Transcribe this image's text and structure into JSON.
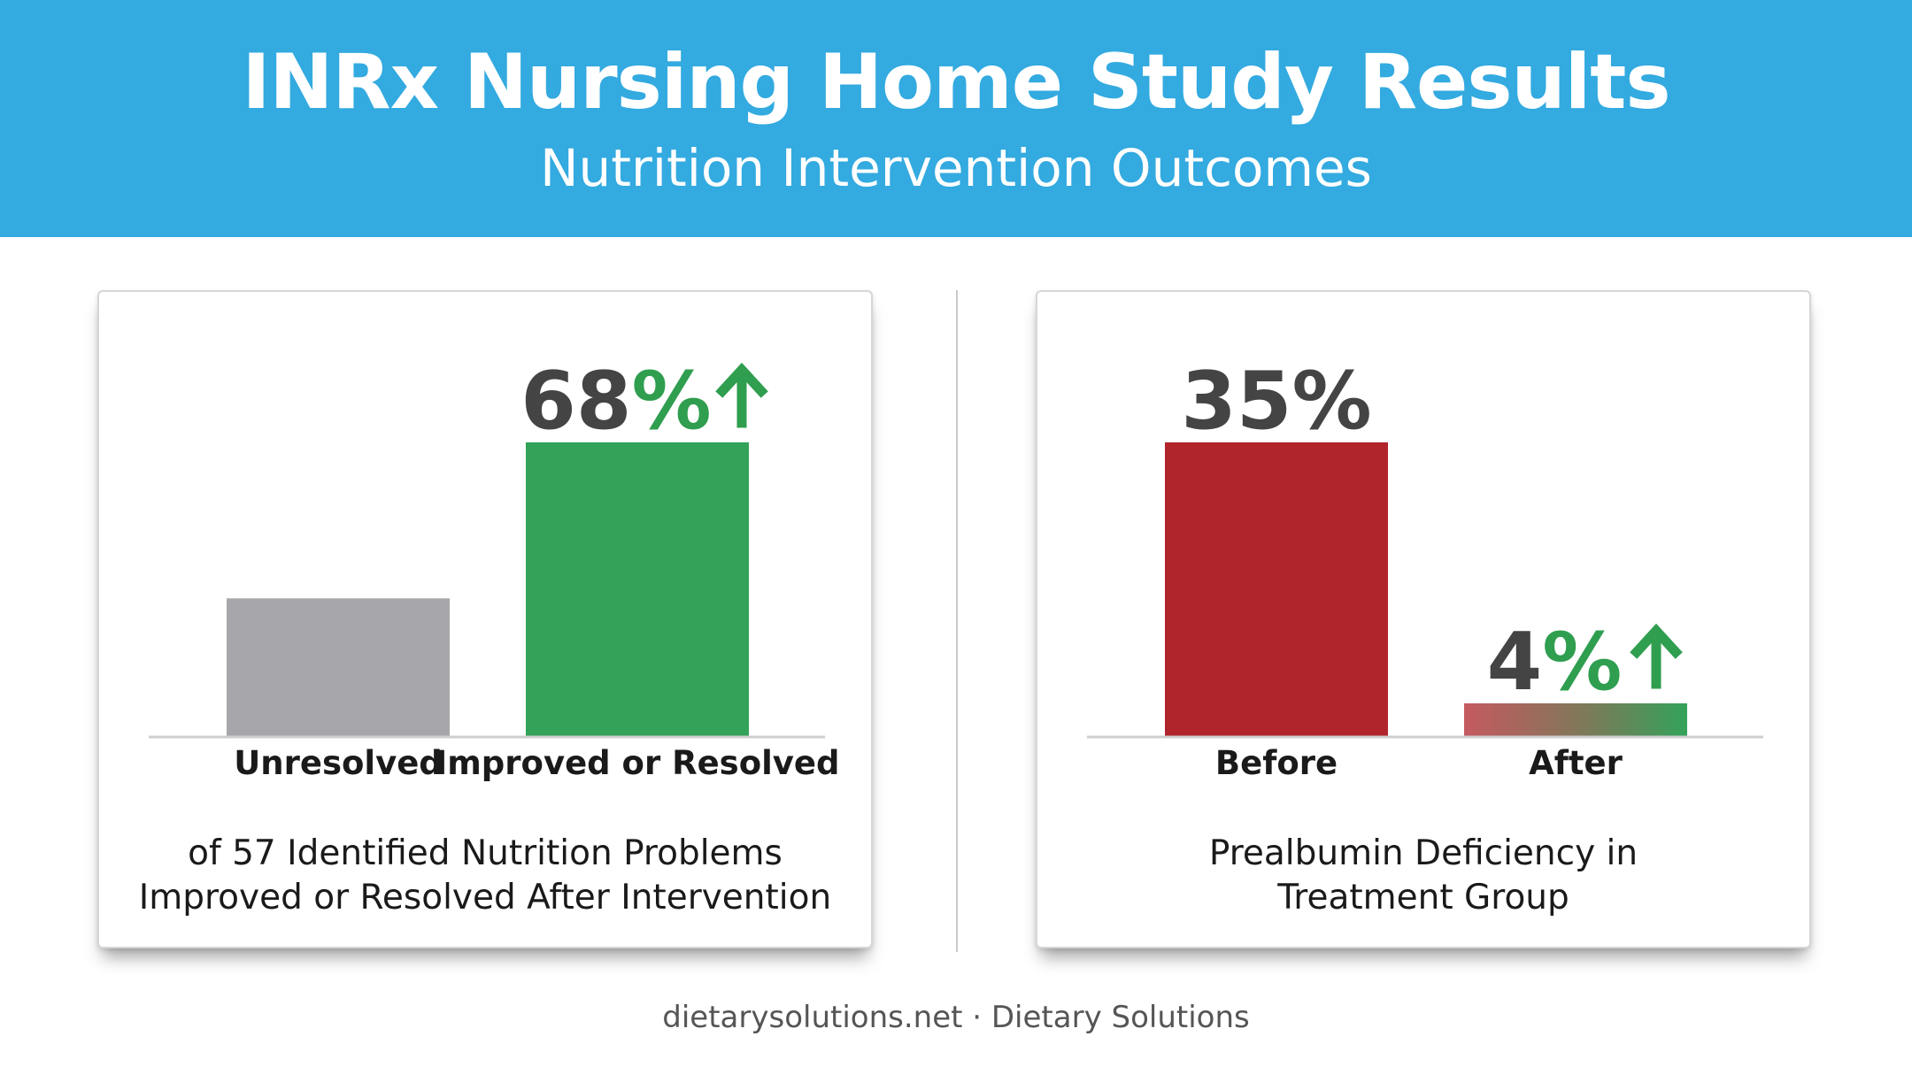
{
  "header": {
    "title": "INRx Nursing Home Study Results",
    "subtitle": "Nutrition Intervention Outcomes"
  },
  "colors": {
    "header_bg": "#33aae0",
    "gray": "#a7a7ab",
    "green": "#33a35a",
    "red": "#b0242c",
    "dark_text": "#444444",
    "accent_green": "#2f9e4f"
  },
  "chart_data": [
    {
      "type": "bar",
      "categories": [
        "Unresolved",
        "Improved or Resolved"
      ],
      "values": [
        32,
        68
      ],
      "ylim": [
        0,
        68
      ],
      "data_labels": [
        "",
        "68%"
      ],
      "label_arrow": [
        false,
        true
      ],
      "bar_colors": [
        "#a7a7ab",
        "#33a35a"
      ],
      "caption_lines": [
        "of 57 Identified Nutrition Problems",
        "Improved or Resolved After Intervention"
      ]
    },
    {
      "type": "bar",
      "categories": [
        "Before",
        "After"
      ],
      "values": [
        35,
        4
      ],
      "ylim": [
        0,
        35
      ],
      "data_labels": [
        "35%",
        "4%"
      ],
      "label_arrow": [
        false,
        true
      ],
      "bar_colors": [
        "#b0242c",
        "gradient-red-green"
      ],
      "caption_lines": [
        "Prealbumin Deficiency in",
        "Treatment Group"
      ]
    }
  ],
  "footer": {
    "text": "dietarysolutions.net · Dietary Solutions"
  }
}
